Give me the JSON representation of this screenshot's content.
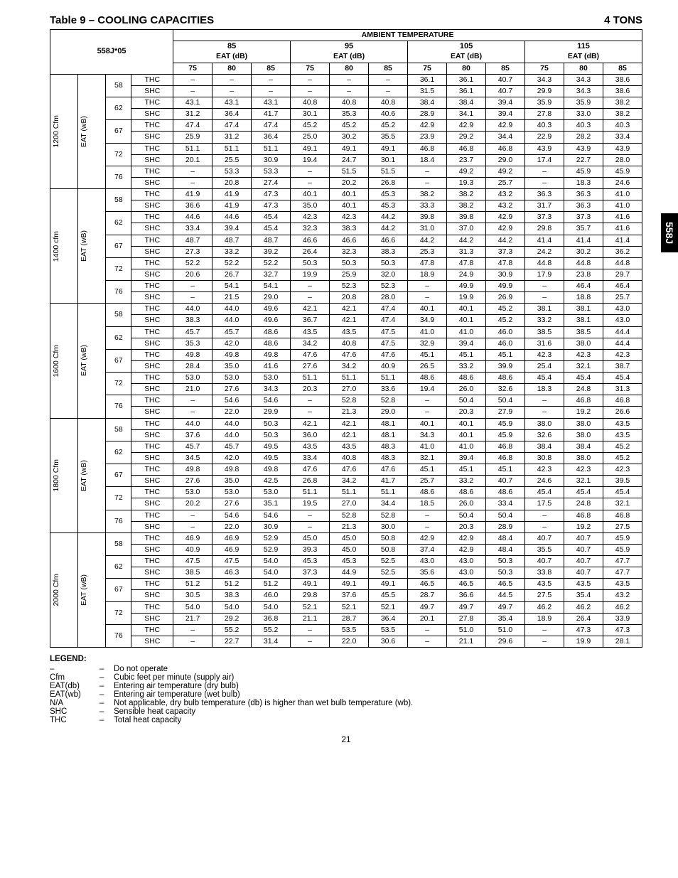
{
  "title": "Table 9 – COOLING CAPACITIES",
  "tons": "4 TONS",
  "side_tab": "558J",
  "page_number": "21",
  "headers": {
    "ambient": "AMBIENT TEMPERATURE",
    "model": "558J*05",
    "eat_db": "EAT (dB)",
    "ambient_temps": [
      "85",
      "95",
      "105",
      "115"
    ],
    "eat_cols": [
      "75",
      "80",
      "85"
    ]
  },
  "cfm_groups": [
    {
      "cfm": "1200 Cfm",
      "eat_wb": "EAT (wB)"
    },
    {
      "cfm": "1400 cfm",
      "eat_wb": "EAT (wB)"
    },
    {
      "cfm": "1600 Cfm",
      "eat_wb": "EAT (wB)"
    },
    {
      "cfm": "1800 Cfm",
      "eat_wb": "EAT (wB)"
    },
    {
      "cfm": "2000 Cfm",
      "eat_wb": "EAT (wB)"
    }
  ],
  "wet_bulbs": [
    "58",
    "62",
    "67",
    "72",
    "76"
  ],
  "cap_labels": {
    "thc": "THC",
    "shc": "SHC"
  },
  "data": {
    "1200": {
      "58": {
        "thc": [
          "–",
          "–",
          "–",
          "–",
          "–",
          "–",
          "36.1",
          "36.1",
          "40.7",
          "34.3",
          "34.3",
          "38.6"
        ],
        "shc": [
          "–",
          "–",
          "–",
          "–",
          "–",
          "–",
          "31.5",
          "36.1",
          "40.7",
          "29.9",
          "34.3",
          "38.6"
        ]
      },
      "62": {
        "thc": [
          "43.1",
          "43.1",
          "43.1",
          "40.8",
          "40.8",
          "40.8",
          "38.4",
          "38.4",
          "39.4",
          "35.9",
          "35.9",
          "38.2"
        ],
        "shc": [
          "31.2",
          "36.4",
          "41.7",
          "30.1",
          "35.3",
          "40.6",
          "28.9",
          "34.1",
          "39.4",
          "27.8",
          "33.0",
          "38.2"
        ]
      },
      "67": {
        "thc": [
          "47.4",
          "47.4",
          "47.4",
          "45.2",
          "45.2",
          "45.2",
          "42.9",
          "42.9",
          "42.9",
          "40.3",
          "40.3",
          "40.3"
        ],
        "shc": [
          "25.9",
          "31.2",
          "36.4",
          "25.0",
          "30.2",
          "35.5",
          "23.9",
          "29.2",
          "34.4",
          "22.9",
          "28.2",
          "33.4"
        ]
      },
      "72": {
        "thc": [
          "51.1",
          "51.1",
          "51.1",
          "49.1",
          "49.1",
          "49.1",
          "46.8",
          "46.8",
          "46.8",
          "43.9",
          "43.9",
          "43.9"
        ],
        "shc": [
          "20.1",
          "25.5",
          "30.9",
          "19.4",
          "24.7",
          "30.1",
          "18.4",
          "23.7",
          "29.0",
          "17.4",
          "22.7",
          "28.0"
        ]
      },
      "76": {
        "thc": [
          "–",
          "53.3",
          "53.3",
          "–",
          "51.5",
          "51.5",
          "–",
          "49.2",
          "49.2",
          "–",
          "45.9",
          "45.9"
        ],
        "shc": [
          "–",
          "20.8",
          "27.4",
          "–",
          "20.2",
          "26.8",
          "–",
          "19.3",
          "25.7",
          "–",
          "18.3",
          "24.6"
        ]
      }
    },
    "1400": {
      "58": {
        "thc": [
          "41.9",
          "41.9",
          "47.3",
          "40.1",
          "40.1",
          "45.3",
          "38.2",
          "38.2",
          "43.2",
          "36.3",
          "36.3",
          "41.0"
        ],
        "shc": [
          "36.6",
          "41.9",
          "47.3",
          "35.0",
          "40.1",
          "45.3",
          "33.3",
          "38.2",
          "43.2",
          "31.7",
          "36.3",
          "41.0"
        ]
      },
      "62": {
        "thc": [
          "44.6",
          "44.6",
          "45.4",
          "42.3",
          "42.3",
          "44.2",
          "39.8",
          "39.8",
          "42.9",
          "37.3",
          "37.3",
          "41.6"
        ],
        "shc": [
          "33.4",
          "39.4",
          "45.4",
          "32.3",
          "38.3",
          "44.2",
          "31.0",
          "37.0",
          "42.9",
          "29.8",
          "35.7",
          "41.6"
        ]
      },
      "67": {
        "thc": [
          "48.7",
          "48.7",
          "48.7",
          "46.6",
          "46.6",
          "46.6",
          "44.2",
          "44.2",
          "44.2",
          "41.4",
          "41.4",
          "41.4"
        ],
        "shc": [
          "27.3",
          "33.2",
          "39.2",
          "26.4",
          "32.3",
          "38.3",
          "25.3",
          "31.3",
          "37.3",
          "24.2",
          "30.2",
          "36.2"
        ]
      },
      "72": {
        "thc": [
          "52.2",
          "52.2",
          "52.2",
          "50.3",
          "50.3",
          "50.3",
          "47.8",
          "47.8",
          "47.8",
          "44.8",
          "44.8",
          "44.8"
        ],
        "shc": [
          "20.6",
          "26.7",
          "32.7",
          "19.9",
          "25.9",
          "32.0",
          "18.9",
          "24.9",
          "30.9",
          "17.9",
          "23.8",
          "29.7"
        ]
      },
      "76": {
        "thc": [
          "–",
          "54.1",
          "54.1",
          "–",
          "52.3",
          "52.3",
          "–",
          "49.9",
          "49.9",
          "–",
          "46.4",
          "46.4"
        ],
        "shc": [
          "–",
          "21.5",
          "29.0",
          "–",
          "20.8",
          "28.0",
          "–",
          "19.9",
          "26.9",
          "–",
          "18.8",
          "25.7"
        ]
      }
    },
    "1600": {
      "58": {
        "thc": [
          "44.0",
          "44.0",
          "49.6",
          "42.1",
          "42.1",
          "47.4",
          "40.1",
          "40.1",
          "45.2",
          "38.1",
          "38.1",
          "43.0"
        ],
        "shc": [
          "38.3",
          "44.0",
          "49.6",
          "36.7",
          "42.1",
          "47.4",
          "34.9",
          "40.1",
          "45.2",
          "33.2",
          "38.1",
          "43.0"
        ]
      },
      "62": {
        "thc": [
          "45.7",
          "45.7",
          "48.6",
          "43.5",
          "43.5",
          "47.5",
          "41.0",
          "41.0",
          "46.0",
          "38.5",
          "38.5",
          "44.4"
        ],
        "shc": [
          "35.3",
          "42.0",
          "48.6",
          "34.2",
          "40.8",
          "47.5",
          "32.9",
          "39.4",
          "46.0",
          "31.6",
          "38.0",
          "44.4"
        ]
      },
      "67": {
        "thc": [
          "49.8",
          "49.8",
          "49.8",
          "47.6",
          "47.6",
          "47.6",
          "45.1",
          "45.1",
          "45.1",
          "42.3",
          "42.3",
          "42.3"
        ],
        "shc": [
          "28.4",
          "35.0",
          "41.6",
          "27.6",
          "34.2",
          "40.9",
          "26.5",
          "33.2",
          "39.9",
          "25.4",
          "32.1",
          "38.7"
        ]
      },
      "72": {
        "thc": [
          "53.0",
          "53.0",
          "53.0",
          "51.1",
          "51.1",
          "51.1",
          "48.6",
          "48.6",
          "48.6",
          "45.4",
          "45.4",
          "45.4"
        ],
        "shc": [
          "21.0",
          "27.6",
          "34.3",
          "20.3",
          "27.0",
          "33.6",
          "19.4",
          "26.0",
          "32.6",
          "18.3",
          "24.8",
          "31.3"
        ]
      },
      "76": {
        "thc": [
          "–",
          "54.6",
          "54.6",
          "–",
          "52.8",
          "52.8",
          "–",
          "50.4",
          "50.4",
          "–",
          "46.8",
          "46.8"
        ],
        "shc": [
          "–",
          "22.0",
          "29.9",
          "–",
          "21.3",
          "29.0",
          "–",
          "20.3",
          "27.9",
          "–",
          "19.2",
          "26.6"
        ]
      }
    },
    "1800": {
      "58": {
        "thc": [
          "44.0",
          "44.0",
          "50.3",
          "42.1",
          "42.1",
          "48.1",
          "40.1",
          "40.1",
          "45.9",
          "38.0",
          "38.0",
          "43.5"
        ],
        "shc": [
          "37.6",
          "44.0",
          "50.3",
          "36.0",
          "42.1",
          "48.1",
          "34.3",
          "40.1",
          "45.9",
          "32.6",
          "38.0",
          "43.5"
        ]
      },
      "62": {
        "thc": [
          "45.7",
          "45.7",
          "49.5",
          "43.5",
          "43.5",
          "48.3",
          "41.0",
          "41.0",
          "46.8",
          "38.4",
          "38.4",
          "45.2"
        ],
        "shc": [
          "34.5",
          "42.0",
          "49.5",
          "33.4",
          "40.8",
          "48.3",
          "32.1",
          "39.4",
          "46.8",
          "30.8",
          "38.0",
          "45.2"
        ]
      },
      "67": {
        "thc": [
          "49.8",
          "49.8",
          "49.8",
          "47.6",
          "47.6",
          "47.6",
          "45.1",
          "45.1",
          "45.1",
          "42.3",
          "42.3",
          "42.3"
        ],
        "shc": [
          "27.6",
          "35.0",
          "42.5",
          "26.8",
          "34.2",
          "41.7",
          "25.7",
          "33.2",
          "40.7",
          "24.6",
          "32.1",
          "39.5"
        ]
      },
      "72": {
        "thc": [
          "53.0",
          "53.0",
          "53.0",
          "51.1",
          "51.1",
          "51.1",
          "48.6",
          "48.6",
          "48.6",
          "45.4",
          "45.4",
          "45.4"
        ],
        "shc": [
          "20.2",
          "27.6",
          "35.1",
          "19.5",
          "27.0",
          "34.4",
          "18.5",
          "26.0",
          "33.4",
          "17.5",
          "24.8",
          "32.1"
        ]
      },
      "76": {
        "thc": [
          "–",
          "54.6",
          "54.6",
          "–",
          "52.8",
          "52.8",
          "–",
          "50.4",
          "50.4",
          "–",
          "46.8",
          "46.8"
        ],
        "shc": [
          "–",
          "22.0",
          "30.9",
          "–",
          "21.3",
          "30.0",
          "–",
          "20.3",
          "28.9",
          "–",
          "19.2",
          "27.5"
        ]
      }
    },
    "2000": {
      "58": {
        "thc": [
          "46.9",
          "46.9",
          "52.9",
          "45.0",
          "45.0",
          "50.8",
          "42.9",
          "42.9",
          "48.4",
          "40.7",
          "40.7",
          "45.9"
        ],
        "shc": [
          "40.9",
          "46.9",
          "52.9",
          "39.3",
          "45.0",
          "50.8",
          "37.4",
          "42.9",
          "48.4",
          "35.5",
          "40.7",
          "45.9"
        ]
      },
      "62": {
        "thc": [
          "47.5",
          "47.5",
          "54.0",
          "45.3",
          "45.3",
          "52.5",
          "43.0",
          "43.0",
          "50.3",
          "40.7",
          "40.7",
          "47.7"
        ],
        "shc": [
          "38.5",
          "46.3",
          "54.0",
          "37.3",
          "44.9",
          "52.5",
          "35.6",
          "43.0",
          "50.3",
          "33.8",
          "40.7",
          "47.7"
        ]
      },
      "67": {
        "thc": [
          "51.2",
          "51.2",
          "51.2",
          "49.1",
          "49.1",
          "49.1",
          "46.5",
          "46.5",
          "46.5",
          "43.5",
          "43.5",
          "43.5"
        ],
        "shc": [
          "30.5",
          "38.3",
          "46.0",
          "29.8",
          "37.6",
          "45.5",
          "28.7",
          "36.6",
          "44.5",
          "27.5",
          "35.4",
          "43.2"
        ]
      },
      "72": {
        "thc": [
          "54.0",
          "54.0",
          "54.0",
          "52.1",
          "52.1",
          "52.1",
          "49.7",
          "49.7",
          "49.7",
          "46.2",
          "46.2",
          "46.2"
        ],
        "shc": [
          "21.7",
          "29.2",
          "36.8",
          "21.1",
          "28.7",
          "36.4",
          "20.1",
          "27.8",
          "35.4",
          "18.9",
          "26.4",
          "33.9"
        ]
      },
      "76": {
        "thc": [
          "–",
          "55.2",
          "55.2",
          "–",
          "53.5",
          "53.5",
          "–",
          "51.0",
          "51.0",
          "–",
          "47.3",
          "47.3"
        ],
        "shc": [
          "–",
          "22.7",
          "31.4",
          "–",
          "22.0",
          "30.6",
          "–",
          "21.1",
          "29.6",
          "–",
          "19.9",
          "28.1"
        ]
      }
    }
  },
  "legend": {
    "title": "LEGEND:",
    "items": [
      {
        "sym": "–",
        "def": "Do not operate"
      },
      {
        "sym": "Cfm",
        "def": "Cubic feet per minute (supply air)"
      },
      {
        "sym": "EAT(db)",
        "def": "Entering air temperature (dry bulb)"
      },
      {
        "sym": "EAT(wb)",
        "def": "Entering air temperature (wet bulb)"
      },
      {
        "sym": "N/A",
        "def": "Not applicable, dry bulb temperature (db) is higher than wet bulb temperature (wb)."
      },
      {
        "sym": "SHC",
        "def": "Sensible heat capacity"
      },
      {
        "sym": "THC",
        "def": "Total heat capacity"
      }
    ]
  }
}
